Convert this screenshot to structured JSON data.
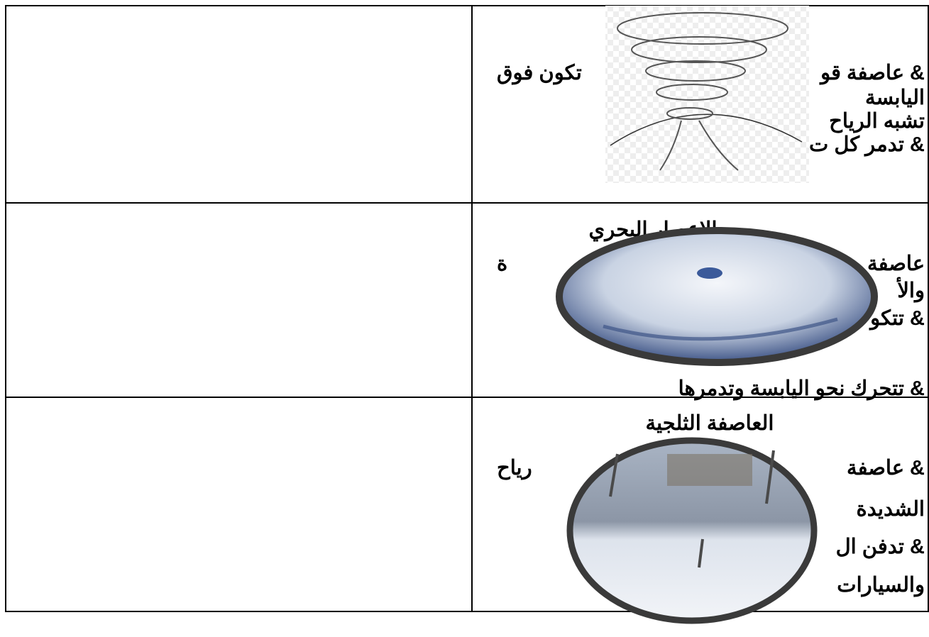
{
  "table": {
    "rows": [
      {
        "lines": [
          {
            "right": "& عاصفة قو",
            "left": "تكون فوق"
          },
          {
            "right": "اليابسة"
          },
          {
            "right": "تشبه الرياح"
          },
          {
            "right": "& تدمر كل ت"
          }
        ]
      },
      {
        "title": "الإعصار البحري",
        "lines": [
          {
            "right": "عاصفة",
            "left": "ة"
          },
          {
            "right": "والأ"
          },
          {
            "right": "& تتكو"
          },
          {
            "right": "& تتحرك نحو اليابسة وتدمرها"
          }
        ]
      },
      {
        "title": "العاصفة الثلجية",
        "lines": [
          {
            "right": "& عاصفة",
            "left": "رياح"
          },
          {
            "right": "الشديدة"
          },
          {
            "right": "& تدفن ال"
          },
          {
            "right": "والسيارات"
          }
        ]
      }
    ]
  }
}
